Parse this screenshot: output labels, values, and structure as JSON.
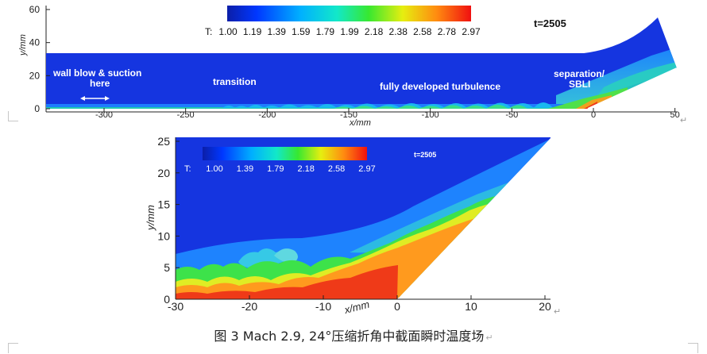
{
  "top_figure": {
    "time_label": "t=2505",
    "colorbar": {
      "prefix": "T:",
      "ticks": [
        "1.00",
        "1.19",
        "1.39",
        "1.59",
        "1.79",
        "1.99",
        "2.18",
        "2.38",
        "2.58",
        "2.78",
        "2.97"
      ]
    },
    "x_ticks": [
      "-300",
      "-250",
      "-200",
      "-150",
      "-100",
      "-50",
      "0",
      "50"
    ],
    "y_ticks": [
      "0",
      "20",
      "40",
      "60"
    ],
    "xlabel": "x/mm",
    "ylabel": "y/mm",
    "annotations": {
      "wall": "wall blow & suction",
      "wall2": "here",
      "transition": "transition",
      "turbulence": "fully developed turbulence",
      "separation": "separation/",
      "sbli": "SBLI"
    }
  },
  "bottom_figure": {
    "time_label": "t=2505",
    "colorbar": {
      "prefix": "T:",
      "ticks": [
        "1.00",
        "1.39",
        "1.79",
        "2.18",
        "2.58",
        "2.97"
      ]
    },
    "x_ticks": [
      "-30",
      "-20",
      "-10",
      "0",
      "10",
      "20"
    ],
    "y_ticks": [
      "0",
      "5",
      "10",
      "15",
      "20",
      "25"
    ],
    "xlabel": "x/mm",
    "ylabel": "y/mm"
  },
  "caption": "图 3 Mach 2.9, 24°压缩折角中截面瞬时温度场",
  "edit_mark": "↵"
}
